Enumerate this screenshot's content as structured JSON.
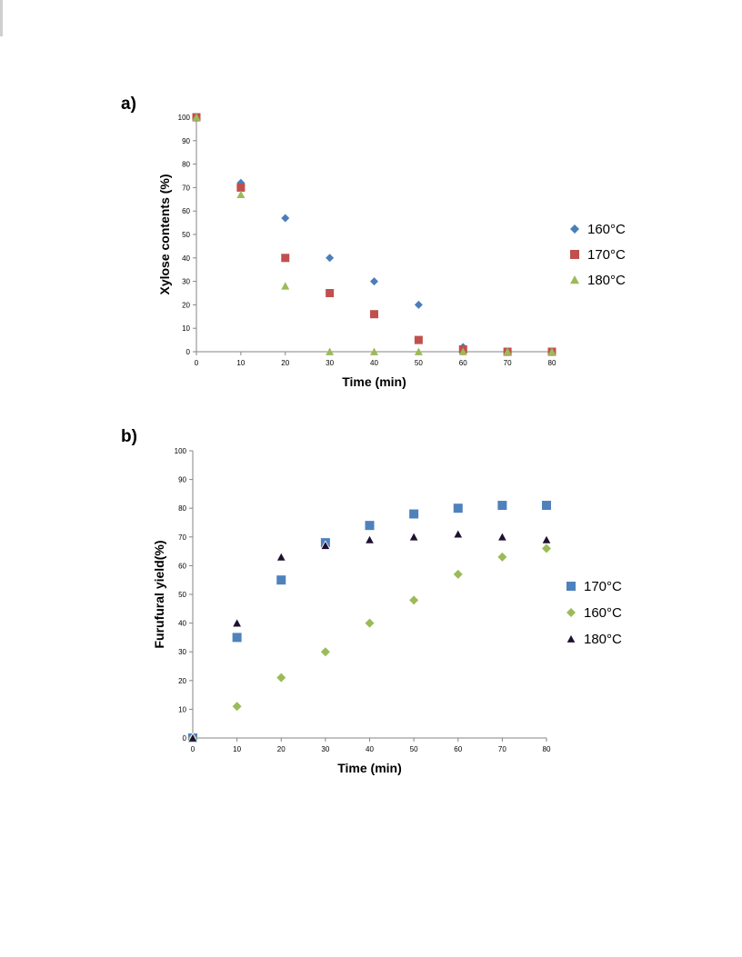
{
  "panels": [
    {
      "label": "a)"
    },
    {
      "label": "b)"
    }
  ],
  "chart_data": [
    {
      "type": "scatter",
      "xlabel": "Time (min)",
      "ylabel": "Xylose contents (%)",
      "xlim": [
        0,
        80
      ],
      "ylim": [
        0,
        100
      ],
      "xticks": [
        0,
        10,
        20,
        30,
        40,
        50,
        60,
        70,
        80
      ],
      "yticks": [
        0,
        10,
        20,
        30,
        40,
        50,
        60,
        70,
        80,
        90,
        100
      ],
      "grid": false,
      "legend_position": "right",
      "series": [
        {
          "name": "160°C",
          "marker": "diamond",
          "color": "#4a7ebb",
          "x": [
            0,
            10,
            20,
            30,
            40,
            50,
            60,
            70,
            80
          ],
          "y": [
            100,
            72,
            57,
            40,
            30,
            20,
            2,
            0,
            0
          ]
        },
        {
          "name": "170°C",
          "marker": "square",
          "color": "#c0504d",
          "x": [
            0,
            10,
            20,
            30,
            40,
            50,
            60,
            70,
            80
          ],
          "y": [
            100,
            70,
            40,
            25,
            16,
            5,
            1,
            0,
            0
          ]
        },
        {
          "name": "180°C",
          "marker": "triangle",
          "color": "#9bbb59",
          "x": [
            0,
            10,
            20,
            30,
            40,
            50,
            60,
            70,
            80
          ],
          "y": [
            100,
            67,
            28,
            0,
            0,
            0,
            0,
            0,
            0
          ]
        }
      ]
    },
    {
      "type": "scatter",
      "xlabel": "Time (min)",
      "ylabel": "Furufural yield(%)",
      "xlim": [
        0,
        80
      ],
      "ylim": [
        0,
        100
      ],
      "xticks": [
        0,
        10,
        20,
        30,
        40,
        50,
        60,
        70,
        80
      ],
      "yticks": [
        0,
        10,
        20,
        30,
        40,
        50,
        60,
        70,
        80,
        90,
        100
      ],
      "grid": false,
      "legend_position": "right",
      "series": [
        {
          "name": "170°C",
          "marker": "square",
          "color": "#4f81bd",
          "x": [
            0,
            10,
            20,
            30,
            40,
            50,
            60,
            70,
            80
          ],
          "y": [
            0,
            35,
            55,
            68,
            74,
            78,
            80,
            81,
            81
          ]
        },
        {
          "name": "160°C",
          "marker": "diamond",
          "color": "#9bbb59",
          "x": [
            0,
            10,
            20,
            30,
            40,
            50,
            60,
            70,
            80
          ],
          "y": [
            0,
            11,
            21,
            30,
            40,
            48,
            57,
            63,
            66
          ]
        },
        {
          "name": "180°C",
          "marker": "triangle-dark",
          "color": "#1f1030",
          "x": [
            0,
            10,
            20,
            30,
            40,
            50,
            60,
            70,
            80
          ],
          "y": [
            0,
            40,
            63,
            67,
            69,
            70,
            71,
            70,
            69
          ]
        }
      ]
    }
  ]
}
